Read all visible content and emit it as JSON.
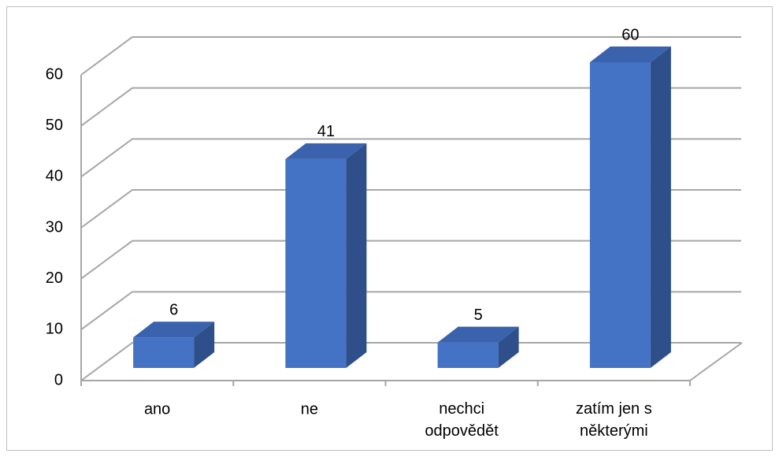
{
  "chart_data": {
    "type": "bar3d",
    "categories": [
      "ano",
      "ne",
      "nechci odpovědět",
      "zatím jen s některými"
    ],
    "values": [
      6,
      41,
      5,
      60
    ],
    "color": "#4472c4",
    "ylim": [
      0,
      60
    ],
    "yticks": [
      0,
      10,
      20,
      30,
      40,
      50,
      60
    ],
    "grid": true
  }
}
